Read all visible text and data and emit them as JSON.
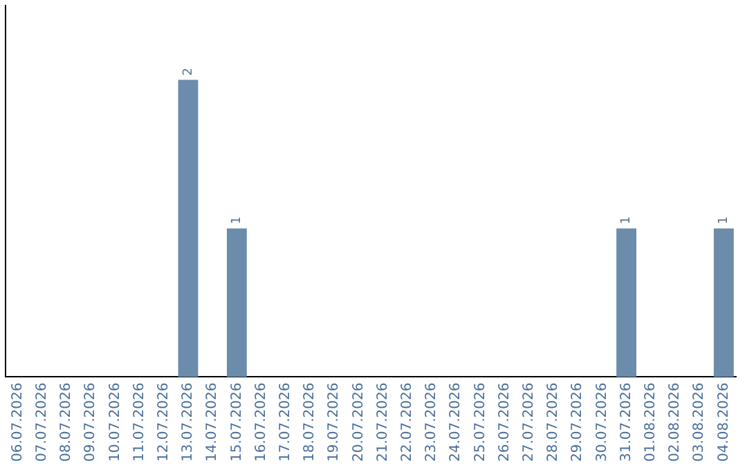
{
  "chart_data": {
    "type": "bar",
    "categories": [
      "06.07.2026",
      "07.07.2026",
      "08.07.2026",
      "09.07.2026",
      "10.07.2026",
      "11.07.2026",
      "12.07.2026",
      "13.07.2026",
      "14.07.2026",
      "15.07.2026",
      "16.07.2026",
      "17.07.2026",
      "18.07.2026",
      "19.07.2026",
      "20.07.2026",
      "21.07.2026",
      "22.07.2026",
      "23.07.2026",
      "24.07.2026",
      "25.07.2026",
      "26.07.2026",
      "27.07.2026",
      "28.07.2026",
      "29.07.2026",
      "30.07.2026",
      "31.07.2026",
      "01.08.2026",
      "02.08.2026",
      "03.08.2026",
      "04.08.2026"
    ],
    "values": [
      0,
      0,
      0,
      0,
      0,
      0,
      0,
      2,
      0,
      1,
      0,
      0,
      0,
      0,
      0,
      0,
      0,
      0,
      0,
      0,
      0,
      0,
      0,
      0,
      0,
      1,
      0,
      0,
      0,
      1
    ],
    "value_labels": [
      null,
      null,
      null,
      null,
      null,
      null,
      null,
      "2",
      null,
      "1",
      null,
      null,
      null,
      null,
      null,
      null,
      null,
      null,
      null,
      null,
      null,
      null,
      null,
      null,
      null,
      "1",
      null,
      null,
      null,
      "1"
    ],
    "color": "#6b8cab",
    "grid": false,
    "legend": false,
    "tick_labels": "x"
  }
}
